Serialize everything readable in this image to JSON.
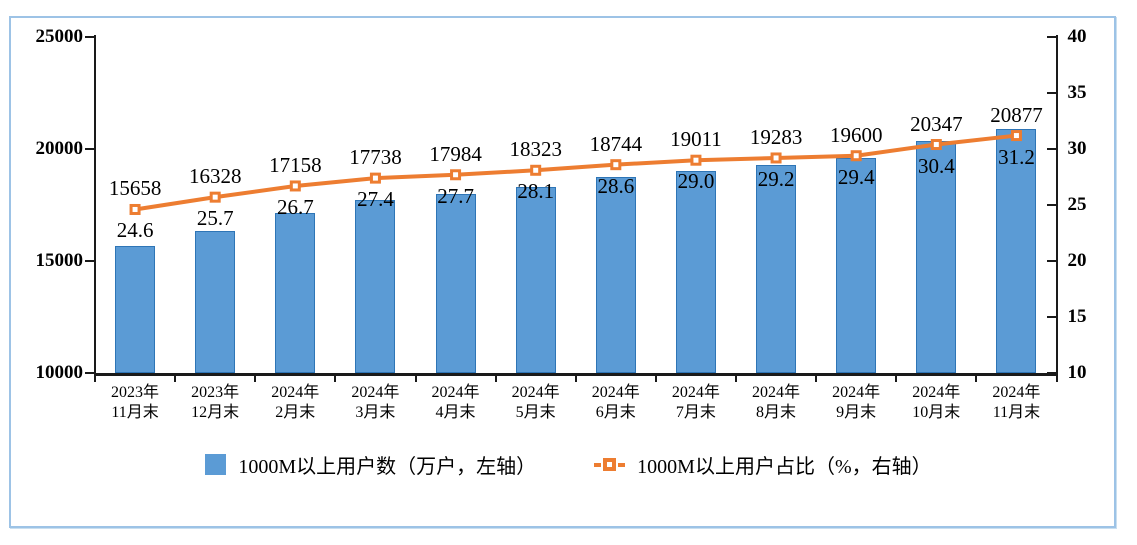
{
  "chart_data": {
    "type": "combo-bar-line",
    "title": "",
    "categories": [
      [
        "2023年",
        "11月末"
      ],
      [
        "2023年",
        "12月末"
      ],
      [
        "2024年",
        "2月末"
      ],
      [
        "2024年",
        "3月末"
      ],
      [
        "2024年",
        "4月末"
      ],
      [
        "2024年",
        "5月末"
      ],
      [
        "2024年",
        "6月末"
      ],
      [
        "2024年",
        "7月末"
      ],
      [
        "2024年",
        "8月末"
      ],
      [
        "2024年",
        "9月末"
      ],
      [
        "2024年",
        "10月末"
      ],
      [
        "2024年",
        "11月末"
      ]
    ],
    "series": [
      {
        "name": "1000M以上用户数（万户，左轴）",
        "type": "bar",
        "axis": "left",
        "color": "#5B9BD5",
        "border_color": "#2E75B6",
        "values": [
          15658,
          16328,
          17158,
          17738,
          17984,
          18323,
          18744,
          19011,
          19283,
          19600,
          20347,
          20877
        ]
      },
      {
        "name": "1000M以上用户占比（%，右轴）",
        "type": "line",
        "axis": "right",
        "color": "#ED7D31",
        "marker": "square-white-center",
        "values": [
          24.6,
          25.7,
          26.7,
          27.4,
          27.7,
          28.1,
          28.6,
          29.0,
          29.2,
          29.4,
          30.4,
          31.2
        ],
        "value_labels": [
          "24.6",
          "25.7",
          "26.7",
          "27.4",
          "27.7",
          "28.1",
          "28.6",
          "29.0",
          "29.2",
          "29.4",
          "30.4",
          "31.2"
        ]
      }
    ],
    "left_axis": {
      "min": 10000,
      "max": 25000,
      "tick_step": 5000,
      "tick_labels": [
        "10000",
        "15000",
        "20000",
        "25000"
      ]
    },
    "right_axis": {
      "min": 10,
      "max": 40,
      "tick_step": 5,
      "tick_labels": [
        "10",
        "15",
        "20",
        "25",
        "30",
        "35",
        "40"
      ]
    },
    "grid": false,
    "legend_position": "bottom",
    "frame_border_color": "#9DC3E6",
    "axis_color": "#1a1a1a"
  }
}
